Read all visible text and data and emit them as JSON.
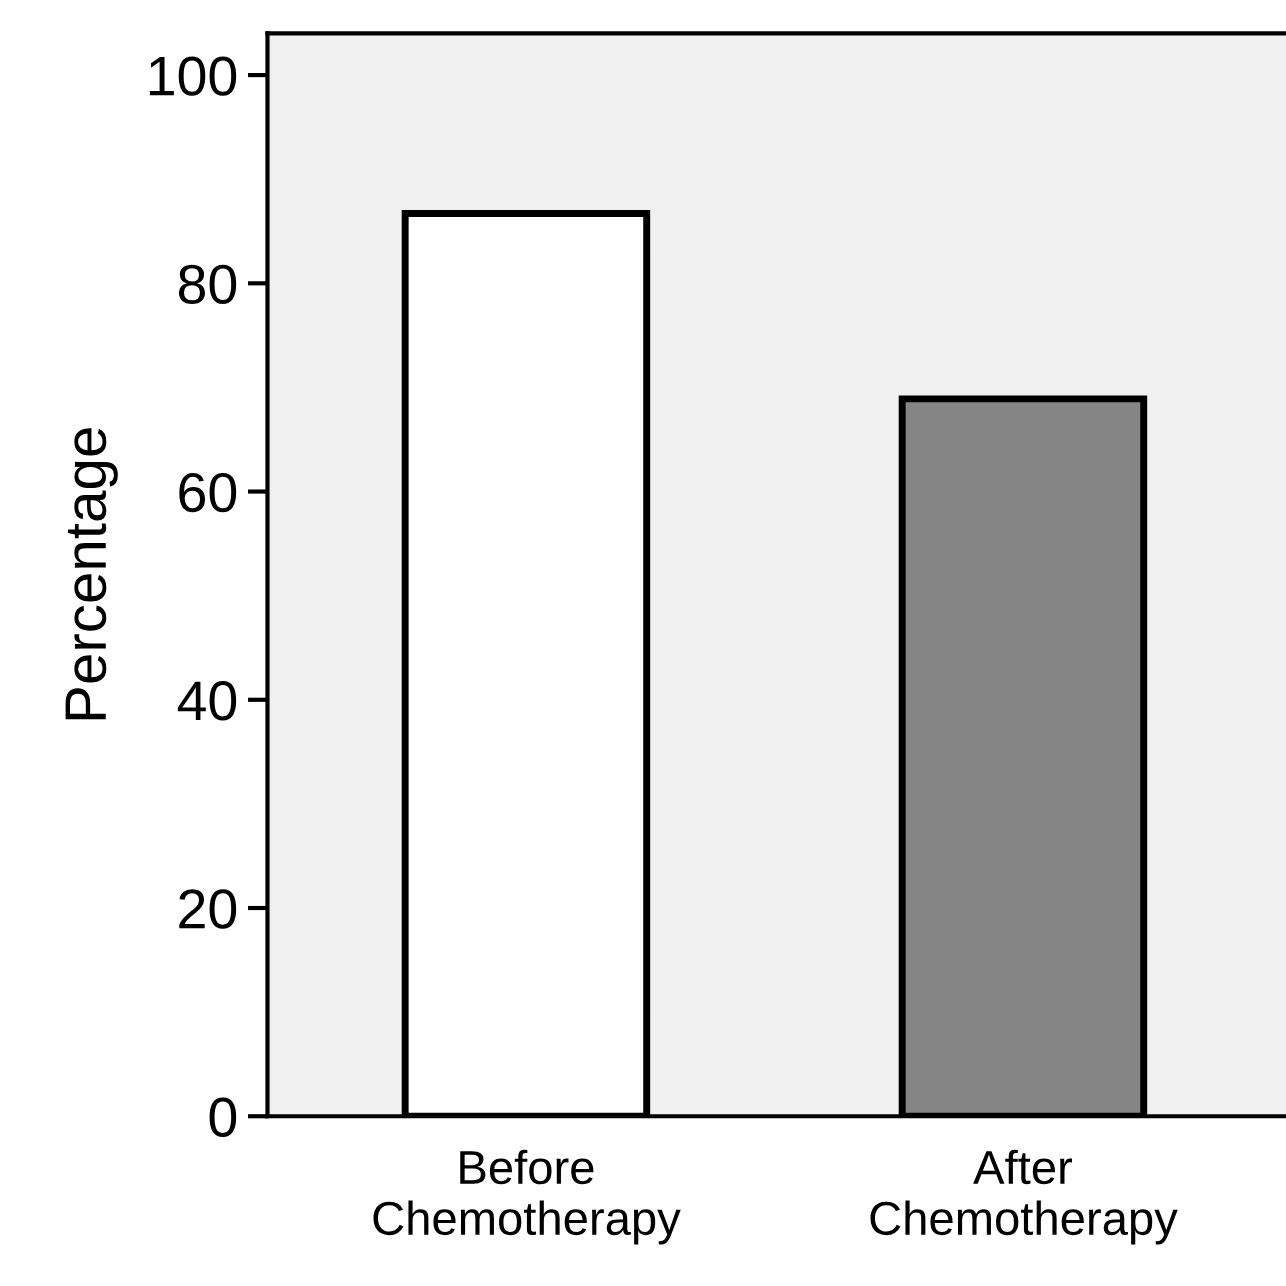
{
  "chart_data": {
    "type": "bar",
    "ylabel": "Percentage",
    "categories": [
      "Before\nChemotherapy",
      "After\nChemotherapy"
    ],
    "values": [
      86.7,
      68.9
    ],
    "colors": [
      "#ffffff",
      "#858585"
    ],
    "ylim": [
      0,
      104
    ],
    "yticks": [
      0,
      20,
      40,
      60,
      80,
      100
    ],
    "grid": false
  }
}
